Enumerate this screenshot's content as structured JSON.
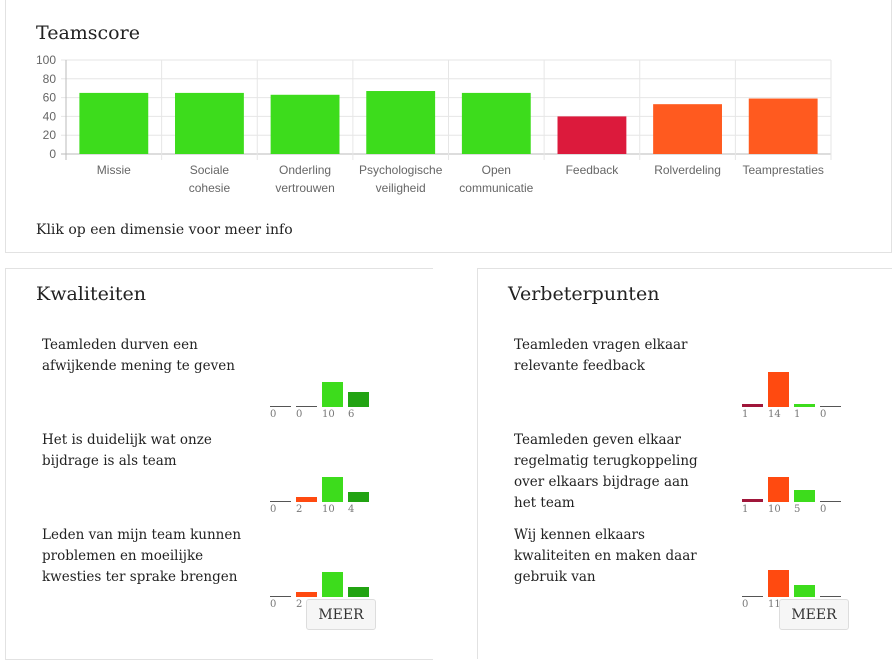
{
  "teamscore": {
    "title": "Teamscore",
    "hint": "Klik op een dimensie voor meer info"
  },
  "chart_data": {
    "type": "bar",
    "categories": [
      [
        "Missie"
      ],
      [
        "Sociale",
        "cohesie"
      ],
      [
        "Onderling",
        "vertrouwen"
      ],
      [
        "Psychologische",
        "veiligheid"
      ],
      [
        "Open",
        "communicatie"
      ],
      [
        "Feedback"
      ],
      [
        "Rolverdeling"
      ],
      [
        "Teamprestaties"
      ]
    ],
    "values": [
      65,
      65,
      63,
      67,
      65,
      40,
      53,
      59
    ],
    "colors": [
      "#3ddc1c",
      "#3ddc1c",
      "#3ddc1c",
      "#3ddc1c",
      "#3ddc1c",
      "#dc1a3c",
      "#ff5a1f",
      "#ff5a1f"
    ],
    "ylim": [
      0,
      100
    ],
    "yticks": [
      0,
      20,
      40,
      60,
      80,
      100
    ],
    "title": "",
    "xlabel": "",
    "ylabel": ""
  },
  "qualities": {
    "title": "Kwaliteiten",
    "more_label": "MEER",
    "items": [
      {
        "text": "Teamleden durven een afwijkende mening te geven",
        "counts": [
          0,
          0,
          10,
          6
        ]
      },
      {
        "text": "Het is duidelijk wat onze bijdrage is als team",
        "counts": [
          0,
          2,
          10,
          4
        ]
      },
      {
        "text": "Leden van mijn team kunnen problemen en moeilijke kwesties ter sprake brengen",
        "counts": [
          0,
          2,
          10,
          4
        ]
      }
    ]
  },
  "improvements": {
    "title": "Verbeterpunten",
    "more_label": "MEER",
    "items": [
      {
        "text": "Teamleden vragen elkaar relevante feedback",
        "counts": [
          1,
          14,
          1,
          0
        ]
      },
      {
        "text": "Teamleden geven elkaar regelmatig terugkoppeling over elkaars bijdrage aan het team",
        "counts": [
          1,
          10,
          5,
          0
        ]
      },
      {
        "text": "Wij kennen elkaars kwaliteiten en maken daar gebruik van",
        "counts": [
          0,
          11,
          5,
          0
        ]
      }
    ]
  },
  "answer_colors": [
    "#a0163a",
    "#ff4a10",
    "#3ddc1c",
    "#22a312"
  ]
}
